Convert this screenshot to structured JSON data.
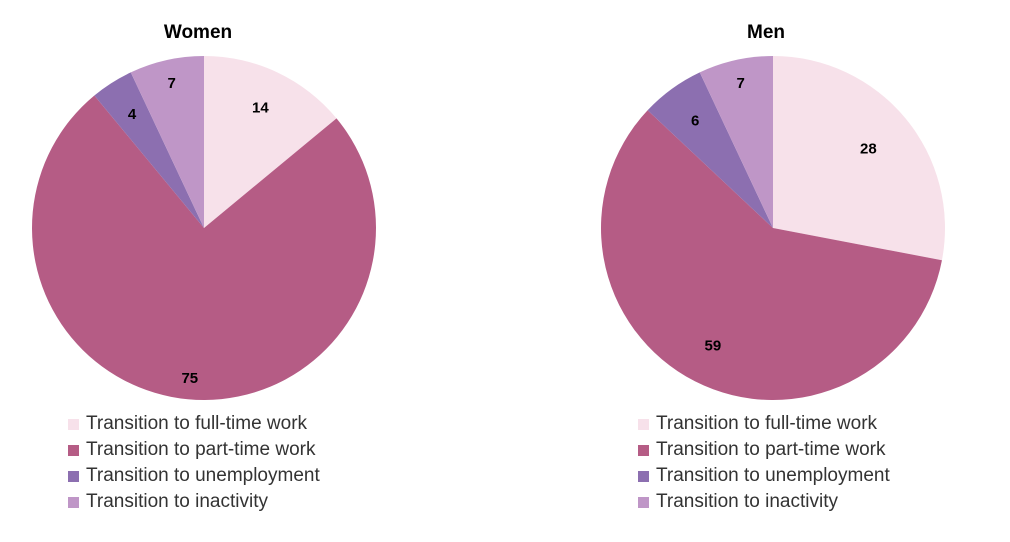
{
  "colors": {
    "full_time": "#f7e1ea",
    "part_time": "#b55c85",
    "unemployment": "#8c6fb0",
    "inactivity": "#bf96c7"
  },
  "chart_data": [
    {
      "type": "pie",
      "title": "Women",
      "start": "12 o'clock",
      "direction": "clockwise",
      "categories": [
        "Transition to full-time work",
        "Transition to part-time work",
        "Transition to unemployment",
        "Transition to inactivity"
      ],
      "values": [
        14,
        75,
        4,
        7
      ],
      "labels": [
        "14",
        "75",
        "4",
        "7"
      ],
      "legend": [
        "Transition to full-time work",
        "Transition to part-time work",
        "Transition to unemployment",
        "Transition to inactivity"
      ]
    },
    {
      "type": "pie",
      "title": "Men",
      "start": "12 o'clock",
      "direction": "clockwise",
      "categories": [
        "Transition to full-time work",
        "Transition to part-time work",
        "Transition to unemployment",
        "Transition to inactivity"
      ],
      "values": [
        28,
        59,
        6,
        7
      ],
      "labels": [
        "28",
        "59",
        "6",
        "7"
      ],
      "legend": [
        "Transition to full-time work",
        "Transition to part-time work",
        "Transition to unemployment",
        "Transition to inactivity"
      ]
    }
  ]
}
